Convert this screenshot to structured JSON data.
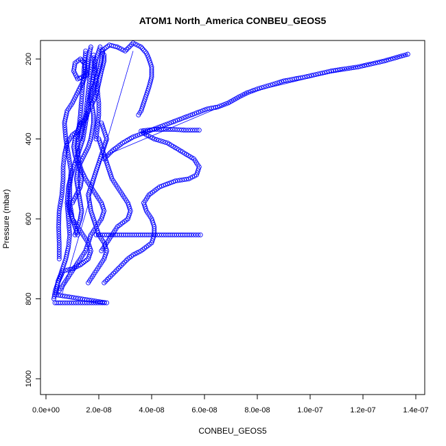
{
  "chart_data": {
    "type": "scatter",
    "title": "ATOM1 North_America CONBEU_GEOS5",
    "xlabel": "CONBEU_GEOS5",
    "ylabel": "Pressure (mbar)",
    "xlim": [
      0,
      1.4e-07
    ],
    "ylim": [
      1035,
      160
    ],
    "y_axis_reversed": true,
    "xticks": [
      0,
      2e-08,
      4e-08,
      6e-08,
      8e-08,
      1e-07,
      1.2e-07,
      1.4e-07
    ],
    "xtick_labels": [
      "0.0e+00",
      "2.0e-08",
      "4.0e-08",
      "6.0e-08",
      "8.0e-08",
      "1.0e-07",
      "1.2e-07",
      "1.4e-07"
    ],
    "yticks": [
      200,
      400,
      600,
      800,
      1000
    ],
    "ytick_labels": [
      "200",
      "400",
      "600",
      "800",
      "1000"
    ],
    "marker": "open-circle",
    "color": "#0000ff",
    "series": [
      {
        "points": [
          [
            3.4e-09,
            810
          ],
          [
            5.5e-09,
            810
          ],
          [
            8e-09,
            810
          ],
          [
            1.05e-08,
            810
          ],
          [
            1.3e-08,
            810
          ],
          [
            1.55e-08,
            810
          ],
          [
            1.8e-08,
            810
          ],
          [
            2.05e-08,
            810
          ],
          [
            2.3e-08,
            810
          ],
          [
            3.8e-09,
            790
          ],
          [
            4.2e-09,
            770
          ],
          [
            4.6e-09,
            755
          ],
          [
            5.5e-09,
            740
          ],
          [
            6.5e-09,
            720
          ],
          [
            7.5e-09,
            700
          ],
          [
            8.5e-09,
            670
          ],
          [
            9e-09,
            640
          ],
          [
            8.5e-09,
            600
          ],
          [
            8e-09,
            560
          ],
          [
            8.5e-09,
            520
          ],
          [
            1e-08,
            480
          ],
          [
            1.2e-08,
            440
          ],
          [
            1.4e-08,
            400
          ],
          [
            1.5e-08,
            360
          ],
          [
            1.6e-08,
            320
          ],
          [
            1.7e-08,
            280
          ],
          [
            1.8e-08,
            240
          ],
          [
            1.9e-08,
            200
          ],
          [
            2.05e-08,
            170
          ]
        ]
      },
      {
        "points": [
          [
            5e-09,
            780
          ],
          [
            7e-09,
            760
          ],
          [
            9e-09,
            740
          ],
          [
            1.1e-08,
            720
          ],
          [
            1.3e-08,
            700
          ],
          [
            1.5e-08,
            680
          ],
          [
            1.6e-08,
            660
          ],
          [
            1.7e-08,
            640
          ],
          [
            1.9e-08,
            620
          ],
          [
            2.1e-08,
            600
          ],
          [
            2.2e-08,
            580
          ],
          [
            2.1e-08,
            560
          ],
          [
            1.9e-08,
            540
          ],
          [
            1.7e-08,
            520
          ],
          [
            1.5e-08,
            500
          ],
          [
            1.35e-08,
            480
          ],
          [
            1.25e-08,
            460
          ],
          [
            1.2e-08,
            430
          ],
          [
            1.2e-08,
            400
          ],
          [
            1.25e-08,
            370
          ],
          [
            1.3e-08,
            340
          ],
          [
            1.35e-08,
            300
          ],
          [
            1.4e-08,
            260
          ],
          [
            1.45e-08,
            220
          ],
          [
            1.5e-08,
            180
          ]
        ]
      },
      {
        "points": [
          [
            1.9e-08,
            640
          ],
          [
            2.3e-08,
            640
          ],
          [
            2.7e-08,
            640
          ],
          [
            3.1e-08,
            640
          ],
          [
            3.5e-08,
            640
          ],
          [
            3.9e-08,
            640
          ],
          [
            4.3e-08,
            640
          ],
          [
            4.7e-08,
            640
          ],
          [
            5.1e-08,
            640
          ],
          [
            5.5e-08,
            640
          ],
          [
            5.85e-08,
            640
          ]
        ]
      },
      {
        "points": [
          [
            2.2e-08,
            760
          ],
          [
            2.5e-08,
            740
          ],
          [
            2.8e-08,
            720
          ],
          [
            3.1e-08,
            700
          ],
          [
            3.3e-08,
            690
          ],
          [
            3.6e-08,
            680
          ],
          [
            3.8e-08,
            670
          ],
          [
            4e-08,
            660
          ],
          [
            4.1e-08,
            640
          ],
          [
            4.1e-08,
            620
          ],
          [
            4e-08,
            600
          ],
          [
            3.8e-08,
            580
          ],
          [
            3.7e-08,
            560
          ],
          [
            3.9e-08,
            540
          ],
          [
            4.3e-08,
            520
          ],
          [
            4.9e-08,
            505
          ],
          [
            5.4e-08,
            500
          ],
          [
            5.7e-08,
            490
          ],
          [
            5.8e-08,
            470
          ],
          [
            5.6e-08,
            450
          ],
          [
            5.1e-08,
            430
          ],
          [
            4.6e-08,
            410
          ],
          [
            4.1e-08,
            400
          ],
          [
            3.8e-08,
            390
          ],
          [
            3.6e-08,
            380
          ],
          [
            4.1e-08,
            376
          ],
          [
            4.8e-08,
            376
          ],
          [
            5.3e-08,
            378
          ],
          [
            5.8e-08,
            378
          ]
        ]
      },
      {
        "points": [
          [
            2.2e-08,
            450
          ],
          [
            2.5e-08,
            430
          ],
          [
            2.9e-08,
            410
          ],
          [
            3.3e-08,
            395
          ],
          [
            3.7e-08,
            385
          ],
          [
            4.1e-08,
            375
          ],
          [
            4.5e-08,
            365
          ],
          [
            4.9e-08,
            355
          ],
          [
            5.3e-08,
            345
          ],
          [
            5.7e-08,
            335
          ],
          [
            6.1e-08,
            325
          ],
          [
            6.5e-08,
            320
          ],
          [
            6.9e-08,
            310
          ],
          [
            7.3e-08,
            295
          ],
          [
            7.6e-08,
            285
          ],
          [
            8e-08,
            275
          ],
          [
            8.5e-08,
            265
          ],
          [
            9e-08,
            255
          ],
          [
            9.8e-08,
            245
          ],
          [
            1.08e-07,
            230
          ],
          [
            1.18e-07,
            220
          ],
          [
            1.28e-07,
            205
          ],
          [
            1.37e-07,
            188
          ]
        ]
      },
      {
        "points": [
          [
            1.7e-08,
            320
          ],
          [
            1.9e-08,
            290
          ],
          [
            2e-08,
            260
          ],
          [
            2.1e-08,
            230
          ],
          [
            2.2e-08,
            205
          ],
          [
            2.2e-08,
            190
          ],
          [
            2.1e-08,
            180
          ],
          [
            2.4e-08,
            165
          ],
          [
            2.7e-08,
            170
          ],
          [
            3e-08,
            180
          ],
          [
            3.3e-08,
            160
          ],
          [
            3.6e-08,
            170
          ],
          [
            3.8e-08,
            185
          ],
          [
            3.9e-08,
            200
          ],
          [
            4e-08,
            220
          ],
          [
            4e-08,
            245
          ],
          [
            3.9e-08,
            270
          ],
          [
            3.8e-08,
            290
          ],
          [
            3.7e-08,
            310
          ],
          [
            3.6e-08,
            330
          ],
          [
            3.5e-08,
            340
          ]
        ]
      },
      {
        "points": [
          [
            1.2e-08,
            640
          ],
          [
            1e-08,
            600
          ],
          [
            9e-09,
            560
          ],
          [
            9e-09,
            520
          ],
          [
            9.5e-09,
            480
          ],
          [
            8.5e-09,
            440
          ],
          [
            7.5e-09,
            400
          ],
          [
            7e-09,
            360
          ],
          [
            8e-09,
            330
          ],
          [
            1e-08,
            310
          ],
          [
            1.15e-08,
            290
          ],
          [
            1.3e-08,
            270
          ],
          [
            1.45e-08,
            250
          ],
          [
            1.5e-08,
            230
          ],
          [
            1.45e-08,
            210
          ],
          [
            1.3e-08,
            200
          ],
          [
            1.1e-08,
            210
          ],
          [
            1.05e-08,
            230
          ],
          [
            1.2e-08,
            250
          ],
          [
            1.55e-08,
            240
          ],
          [
            1.6e-08,
            200
          ],
          [
            1.7e-08,
            170
          ]
        ]
      },
      {
        "points": [
          [
            5e-09,
            700
          ],
          [
            5e-09,
            660
          ],
          [
            4.8e-09,
            620
          ],
          [
            5e-09,
            580
          ],
          [
            6e-09,
            540
          ],
          [
            6.5e-09,
            500
          ],
          [
            6.5e-09,
            470
          ],
          [
            7e-09,
            440
          ],
          [
            8e-09,
            410
          ],
          [
            1e-08,
            390
          ],
          [
            1.2e-08,
            380
          ],
          [
            1.35e-08,
            360
          ],
          [
            1.5e-08,
            350
          ],
          [
            1.6e-08,
            330
          ]
        ]
      },
      {
        "points": [
          [
            2.1e-08,
            680
          ],
          [
            2.3e-08,
            660
          ],
          [
            2.5e-08,
            640
          ],
          [
            2.7e-08,
            620
          ],
          [
            2.9e-08,
            610
          ],
          [
            3.1e-08,
            600
          ],
          [
            3.2e-08,
            580
          ],
          [
            3.1e-08,
            560
          ],
          [
            2.9e-08,
            540
          ],
          [
            2.7e-08,
            520
          ],
          [
            2.5e-08,
            500
          ],
          [
            2.4e-08,
            480
          ],
          [
            2.3e-08,
            460
          ],
          [
            2.2e-08,
            440
          ],
          [
            2.1e-08,
            420
          ],
          [
            2e-08,
            400
          ]
        ]
      },
      {
        "points": [
          [
            1.6e-08,
            760
          ],
          [
            1.8e-08,
            740
          ],
          [
            2e-08,
            720
          ],
          [
            2.2e-08,
            700
          ],
          [
            2.3e-08,
            680
          ],
          [
            2.2e-08,
            660
          ],
          [
            2e-08,
            640
          ],
          [
            1.9e-08,
            620
          ],
          [
            1.8e-08,
            600
          ],
          [
            1.7e-08,
            580
          ],
          [
            1.65e-08,
            560
          ],
          [
            1.6e-08,
            540
          ],
          [
            1.7e-08,
            520
          ],
          [
            1.8e-08,
            500
          ],
          [
            1.9e-08,
            480
          ],
          [
            2e-08,
            460
          ],
          [
            2.1e-08,
            440
          ],
          [
            2.2e-08,
            420
          ],
          [
            2.3e-08,
            400
          ],
          [
            2.2e-08,
            380
          ],
          [
            2.1e-08,
            360
          ]
        ]
      },
      {
        "points": [
          [
            3e-09,
            800
          ],
          [
            3.5e-09,
            780
          ],
          [
            4.5e-09,
            760
          ],
          [
            5.5e-09,
            745
          ],
          [
            6.5e-09,
            730
          ],
          [
            1e-08,
            725
          ],
          [
            1.3e-08,
            715
          ],
          [
            1.6e-08,
            700
          ],
          [
            1.7e-08,
            680
          ],
          [
            1.6e-08,
            660
          ],
          [
            1.4e-08,
            640
          ],
          [
            1.2e-08,
            620
          ],
          [
            1e-08,
            600
          ],
          [
            9e-09,
            580
          ],
          [
            8.5e-09,
            560
          ]
        ]
      },
      {
        "points": [
          [
            1.3e-08,
            400
          ],
          [
            1.4e-08,
            370
          ],
          [
            1.5e-08,
            340
          ],
          [
            1.55e-08,
            310
          ],
          [
            1.6e-08,
            280
          ],
          [
            1.65e-08,
            250
          ],
          [
            1.7e-08,
            220
          ],
          [
            1.75e-08,
            200
          ]
        ]
      },
      {
        "points": [
          [
            1.9e-08,
            400
          ],
          [
            1.95e-08,
            370
          ],
          [
            2e-08,
            340
          ],
          [
            2e-08,
            310
          ],
          [
            1.95e-08,
            280
          ],
          [
            1.9e-08,
            250
          ],
          [
            1.85e-08,
            220
          ],
          [
            1.8e-08,
            190
          ]
        ]
      },
      {
        "points": [
          [
            1e-08,
            560
          ],
          [
            1.15e-08,
            540
          ],
          [
            1.3e-08,
            520
          ],
          [
            1.35e-08,
            500
          ],
          [
            1.3e-08,
            480
          ],
          [
            1.2e-08,
            460
          ],
          [
            1.1e-08,
            440
          ],
          [
            1.05e-08,
            420
          ],
          [
            1.1e-08,
            400
          ],
          [
            1.2e-08,
            380
          ],
          [
            1.3e-08,
            360
          ]
        ]
      },
      {
        "points": [
          [
            1.1e-08,
            640
          ],
          [
            1.2e-08,
            620
          ],
          [
            1.3e-08,
            600
          ],
          [
            1.35e-08,
            580
          ],
          [
            1.3e-08,
            560
          ],
          [
            1.25e-08,
            540
          ],
          [
            1.2e-08,
            520
          ],
          [
            1.15e-08,
            500
          ],
          [
            1.2e-08,
            480
          ],
          [
            1.3e-08,
            460
          ],
          [
            1.45e-08,
            440
          ],
          [
            1.6e-08,
            420
          ],
          [
            1.7e-08,
            400
          ],
          [
            1.75e-08,
            380
          ],
          [
            1.8e-08,
            360
          ],
          [
            1.8e-08,
            340
          ],
          [
            1.75e-08,
            320
          ],
          [
            1.7e-08,
            300
          ],
          [
            1.75e-08,
            280
          ],
          [
            1.85e-08,
            260
          ],
          [
            1.95e-08,
            240
          ],
          [
            2.05e-08,
            220
          ],
          [
            2.1e-08,
            200
          ],
          [
            2.15e-08,
            180
          ]
        ]
      }
    ],
    "lines": [
      [
        [
          6e-09,
          790
        ],
        [
          3.3e-08,
          180
        ]
      ],
      [
        [
          2.3e-08,
          440
        ],
        [
          6.6e-08,
          320
        ],
        [
          7.6e-08,
          285
        ],
        [
          1.37e-07,
          188
        ]
      ]
    ]
  }
}
